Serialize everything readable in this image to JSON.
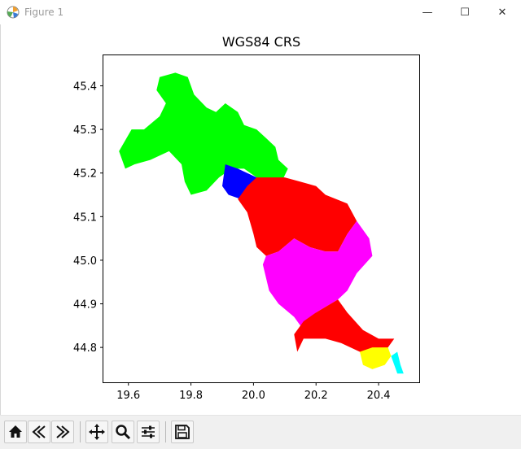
{
  "window": {
    "title": "Figure 1",
    "controls": {
      "minimize": "—",
      "maximize": "☐",
      "close": "✕"
    }
  },
  "chart_data": {
    "type": "map",
    "title": "WGS84 CRS",
    "xlim": [
      19.52,
      20.53
    ],
    "ylim": [
      44.72,
      45.47
    ],
    "xticks": [
      19.6,
      19.8,
      20.0,
      20.2,
      20.4
    ],
    "xtick_labels": [
      "19.6",
      "19.8",
      "20.0",
      "20.2",
      "20.4"
    ],
    "yticks": [
      44.8,
      44.9,
      45.0,
      45.1,
      45.2,
      45.3,
      45.4
    ],
    "ytick_labels": [
      "44.8",
      "44.9",
      "45.0",
      "45.1",
      "45.2",
      "45.3",
      "45.4"
    ],
    "grid": false,
    "regions": [
      {
        "color": "#00ff00",
        "coords": [
          [
            19.7,
            45.42
          ],
          [
            19.75,
            45.43
          ],
          [
            19.79,
            45.42
          ],
          [
            19.81,
            45.38
          ],
          [
            19.85,
            45.35
          ],
          [
            19.88,
            45.34
          ],
          [
            19.91,
            45.36
          ],
          [
            19.95,
            45.34
          ],
          [
            19.97,
            45.31
          ],
          [
            20.01,
            45.3
          ],
          [
            20.04,
            45.28
          ],
          [
            20.07,
            45.26
          ],
          [
            20.08,
            45.23
          ],
          [
            20.11,
            45.21
          ],
          [
            20.09,
            45.18
          ],
          [
            20.05,
            45.17
          ],
          [
            20.01,
            45.19
          ],
          [
            19.97,
            45.21
          ],
          [
            19.93,
            45.21
          ],
          [
            19.89,
            45.19
          ],
          [
            19.85,
            45.16
          ],
          [
            19.8,
            45.15
          ],
          [
            19.78,
            45.18
          ],
          [
            19.77,
            45.22
          ],
          [
            19.73,
            45.25
          ],
          [
            19.67,
            45.23
          ],
          [
            19.62,
            45.22
          ],
          [
            19.59,
            45.21
          ],
          [
            19.57,
            45.25
          ],
          [
            19.61,
            45.3
          ],
          [
            19.65,
            45.3
          ],
          [
            19.7,
            45.33
          ],
          [
            19.72,
            45.36
          ],
          [
            19.69,
            45.39
          ]
        ]
      },
      {
        "color": "#0000ff",
        "coords": [
          [
            19.91,
            45.22
          ],
          [
            19.95,
            45.21
          ],
          [
            19.98,
            45.2
          ],
          [
            20.01,
            45.19
          ],
          [
            19.99,
            45.16
          ],
          [
            19.96,
            45.14
          ],
          [
            19.92,
            45.15
          ],
          [
            19.9,
            45.17
          ]
        ]
      },
      {
        "color": "#ff0000",
        "coords": [
          [
            20.01,
            45.19
          ],
          [
            20.05,
            45.19
          ],
          [
            20.1,
            45.19
          ],
          [
            20.15,
            45.18
          ],
          [
            20.2,
            45.17
          ],
          [
            20.23,
            45.15
          ],
          [
            20.3,
            45.13
          ],
          [
            20.33,
            45.09
          ],
          [
            20.3,
            45.06
          ],
          [
            20.27,
            45.02
          ],
          [
            20.23,
            45.02
          ],
          [
            20.18,
            45.03
          ],
          [
            20.13,
            45.05
          ],
          [
            20.08,
            45.02
          ],
          [
            20.04,
            45.01
          ],
          [
            20.01,
            45.03
          ],
          [
            20.0,
            45.06
          ],
          [
            19.98,
            45.11
          ],
          [
            19.95,
            45.14
          ],
          [
            19.98,
            45.17
          ]
        ]
      },
      {
        "color": "#ff00ff",
        "coords": [
          [
            20.33,
            45.09
          ],
          [
            20.37,
            45.05
          ],
          [
            20.38,
            45.01
          ],
          [
            20.33,
            44.97
          ],
          [
            20.3,
            44.93
          ],
          [
            20.27,
            44.91
          ],
          [
            20.2,
            44.88
          ],
          [
            20.16,
            44.84
          ],
          [
            20.13,
            44.87
          ],
          [
            20.08,
            44.9
          ],
          [
            20.05,
            44.93
          ],
          [
            20.03,
            44.99
          ],
          [
            20.04,
            45.01
          ],
          [
            20.08,
            45.02
          ],
          [
            20.13,
            45.05
          ],
          [
            20.18,
            45.03
          ],
          [
            20.23,
            45.02
          ],
          [
            20.27,
            45.02
          ],
          [
            20.3,
            45.06
          ]
        ]
      },
      {
        "color": "#ff0000",
        "coords": [
          [
            20.27,
            44.91
          ],
          [
            20.3,
            44.88
          ],
          [
            20.35,
            44.84
          ],
          [
            20.4,
            44.82
          ],
          [
            20.45,
            44.82
          ],
          [
            20.43,
            44.8
          ],
          [
            20.38,
            44.78
          ],
          [
            20.34,
            44.79
          ],
          [
            20.28,
            44.81
          ],
          [
            20.23,
            44.82
          ],
          [
            20.16,
            44.82
          ],
          [
            20.14,
            44.79
          ],
          [
            20.13,
            44.83
          ],
          [
            20.16,
            44.86
          ],
          [
            20.2,
            44.88
          ]
        ]
      },
      {
        "color": "#ffff00",
        "coords": [
          [
            20.34,
            44.79
          ],
          [
            20.38,
            44.8
          ],
          [
            20.43,
            44.8
          ],
          [
            20.44,
            44.78
          ],
          [
            20.42,
            44.76
          ],
          [
            20.38,
            44.75
          ],
          [
            20.35,
            44.76
          ]
        ]
      },
      {
        "color": "#00ffff",
        "coords": [
          [
            20.44,
            44.78
          ],
          [
            20.46,
            44.79
          ],
          [
            20.47,
            44.76
          ],
          [
            20.48,
            44.74
          ],
          [
            20.46,
            44.74
          ],
          [
            20.45,
            44.76
          ]
        ]
      }
    ]
  },
  "toolbar": {
    "buttons": [
      {
        "name": "home-button",
        "icon": "home-icon"
      },
      {
        "name": "back-button",
        "icon": "arrow-left-icon"
      },
      {
        "name": "forward-button",
        "icon": "arrow-right-icon"
      },
      {
        "name": "pan-button",
        "icon": "move-icon"
      },
      {
        "name": "zoom-button",
        "icon": "magnifier-icon"
      },
      {
        "name": "subplots-button",
        "icon": "sliders-icon"
      },
      {
        "name": "save-button",
        "icon": "floppy-disk-icon"
      }
    ]
  }
}
